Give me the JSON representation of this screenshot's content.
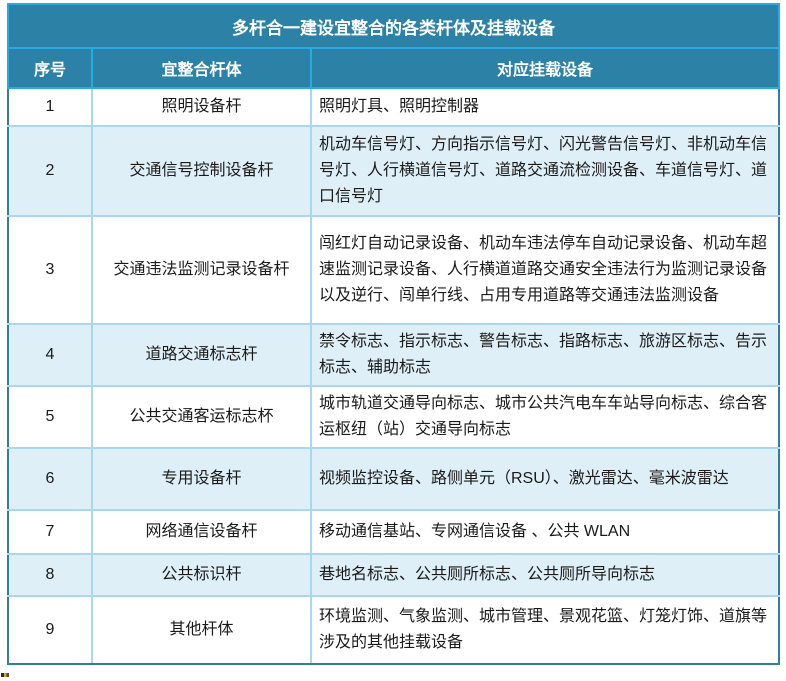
{
  "table": {
    "title": "多杆合一建设宜整合的各类杆体及挂载设备",
    "columns": {
      "no": "序号",
      "pole": "宜整合杆体",
      "devices": "对应挂载设备"
    },
    "rows": [
      {
        "no": "1",
        "pole": "照明设备杆",
        "devices": "照明灯具、照明控制器"
      },
      {
        "no": "2",
        "pole": "交通信号控制设备杆",
        "devices": "机动车信号灯、方向指示信号灯、闪光警告信号灯、非机动车信号灯、人行横道信号灯、道路交通流检测设备、车道信号灯、道口信号灯"
      },
      {
        "no": "3",
        "pole": "交通违法监测记录设备杆",
        "devices": "闯红灯自动记录设备、机动车违法停车自动记录设备、机动车超速监测记录设备、人行横道道路交通安全违法行为监测记录设备以及逆行、闯单行线、占用专用道路等交通违法监测设备"
      },
      {
        "no": "4",
        "pole": "道路交通标志杆",
        "devices": "禁令标志、指示标志、警告标志、指路标志、旅游区标志、告示标志、辅助标志"
      },
      {
        "no": "5",
        "pole": "公共交通客运标志杯",
        "devices": "城市轨道交通导向标志、城市公共汽电车车站导向标志、综合客运枢纽（站）交通导向标志"
      },
      {
        "no": "6",
        "pole": "专用设备杆",
        "devices": "视频监控设备、路侧单元（RSU）、激光雷达、毫米波雷达"
      },
      {
        "no": "7",
        "pole": "网络通信设备杆",
        "devices": "移动通信基站、专网通信设备 、公共 WLAN"
      },
      {
        "no": "8",
        "pole": "公共标识杆",
        "devices": "巷地名标志、公共厕所标志、公共厕所导向标志"
      },
      {
        "no": "9",
        "pole": "其他杆体",
        "devices": "环境监测、气象监测、城市管理、景观花篮、灯笼灯饰、道旗等涉及的其他挂载设备"
      }
    ],
    "colors": {
      "header_bg": "#2B81A6",
      "header_text": "#FFFFFF",
      "cyan_border": "#29ABE2",
      "body_outer_border": "#2E7FA0",
      "row_border": "#A9D8EC",
      "alt_row_bg": "#DFEFF7",
      "body_text": "#1A1A1A"
    }
  }
}
